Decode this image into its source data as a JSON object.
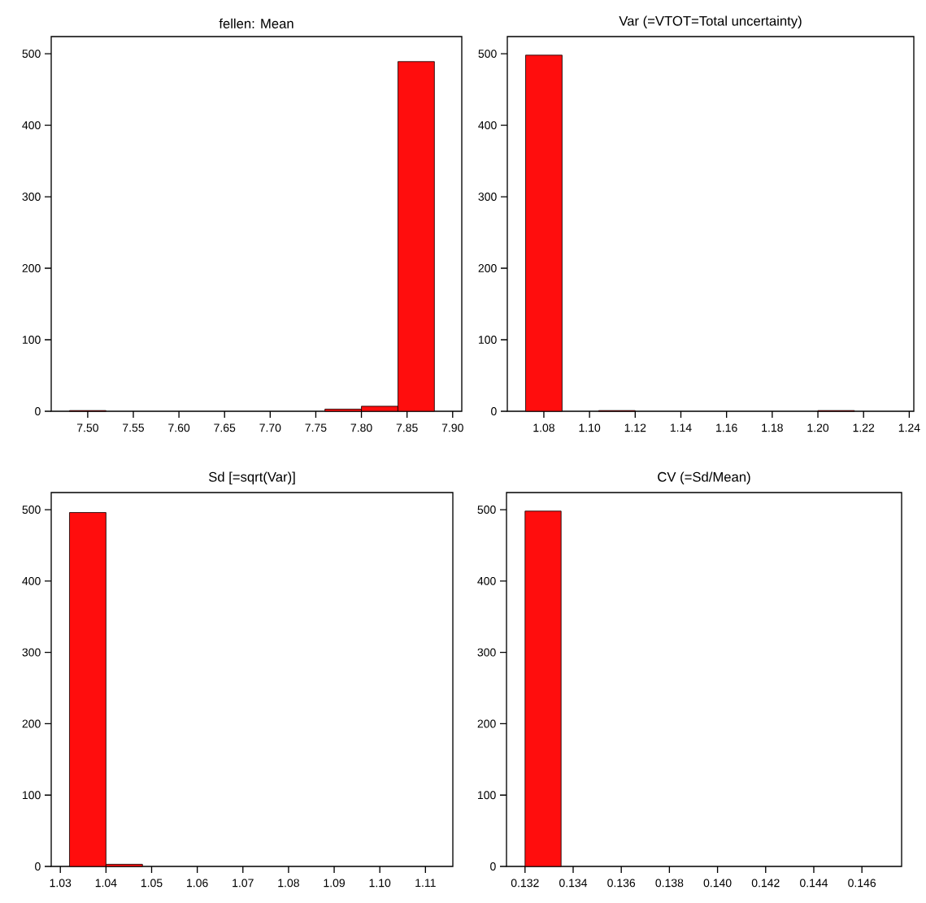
{
  "chart_data": [
    {
      "type": "histogram",
      "title": "fellen: Mean",
      "color": "#ff0d0d",
      "bins": [
        7.48,
        7.52,
        7.56,
        7.6,
        7.64,
        7.68,
        7.72,
        7.76,
        7.8,
        7.84,
        7.88
      ],
      "values": [
        1,
        0,
        0,
        0,
        0,
        0,
        0,
        3,
        7,
        489
      ],
      "xlim": [
        7.46,
        7.91
      ],
      "ylim": [
        0,
        524
      ],
      "xticks": [
        {
          "value": 7.5,
          "label": "7.50"
        },
        7.55,
        {
          "value": 7.6,
          "label": "7.60"
        },
        7.65,
        {
          "value": 7.7,
          "label": "7.70"
        },
        7.75,
        {
          "value": 7.8,
          "label": "7.80"
        },
        7.85,
        {
          "value": 7.9,
          "label": "7.90"
        }
      ],
      "yticks": [
        0,
        100,
        200,
        300,
        400,
        500
      ]
    },
    {
      "type": "histogram",
      "title": "Var (=VTOT=Total uncertainty)",
      "color": "#ff0d0d",
      "bins": [
        1.072,
        1.088,
        1.104,
        1.12,
        1.136,
        1.152,
        1.168,
        1.184,
        1.2,
        1.216
      ],
      "values": [
        498,
        0,
        1,
        0,
        0,
        0,
        0,
        0,
        1
      ],
      "xlim": [
        1.064,
        1.242
      ],
      "ylim": [
        0,
        524
      ],
      "xticks": [
        1.08,
        {
          "value": 1.1,
          "label": "1.10"
        },
        1.12,
        1.14,
        1.16,
        1.18,
        {
          "value": 1.2,
          "label": "1.20"
        },
        1.22,
        1.24
      ],
      "yticks": [
        0,
        100,
        200,
        300,
        400,
        500
      ]
    },
    {
      "type": "histogram",
      "title": "Sd [=sqrt(Var)]",
      "color": "#ff0d0d",
      "bins": [
        1.032,
        1.04,
        1.048,
        1.056,
        1.064,
        1.072,
        1.08,
        1.088,
        1.096,
        1.104,
        1.112
      ],
      "values": [
        496,
        3,
        0,
        0,
        0,
        0,
        0,
        0,
        0,
        0
      ],
      "xlim": [
        1.028,
        1.116
      ],
      "ylim": [
        0,
        524
      ],
      "xticks": [
        1.03,
        1.04,
        1.05,
        1.06,
        1.07,
        1.08,
        1.09,
        {
          "value": 1.1,
          "label": "1.10"
        },
        1.11
      ],
      "yticks": [
        0,
        100,
        200,
        300,
        400,
        500
      ]
    },
    {
      "type": "histogram",
      "title": "CV (=Sd/Mean)",
      "color": "#ff0d0d",
      "bins": [
        0.132,
        0.1335,
        0.135,
        0.1365,
        0.138,
        0.1395,
        0.141,
        0.1425,
        0.144,
        0.1455,
        0.147
      ],
      "values": [
        498,
        0,
        0,
        0,
        0,
        0,
        0,
        0,
        0,
        0
      ],
      "xlim": [
        0.13123,
        0.14765
      ],
      "ylim": [
        0,
        524
      ],
      "xticks": [
        0.132,
        0.134,
        0.136,
        0.138,
        {
          "value": 0.14,
          "label": "0.140"
        },
        0.142,
        0.144,
        0.146
      ],
      "yticks": [
        0,
        100,
        200,
        300,
        400,
        500
      ]
    }
  ]
}
